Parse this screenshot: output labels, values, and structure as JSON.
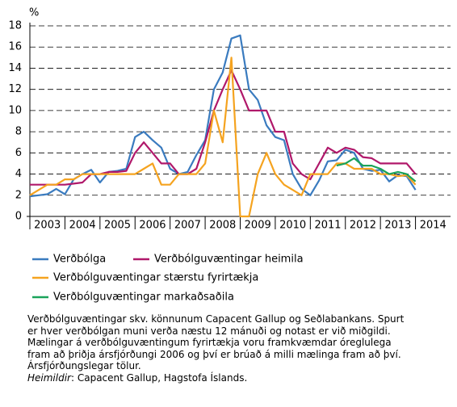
{
  "chart_data": {
    "type": "line",
    "y_label": "%",
    "x": [
      2003,
      2003.25,
      2003.5,
      2003.75,
      2004,
      2004.25,
      2004.5,
      2004.75,
      2005,
      2005.25,
      2005.5,
      2005.75,
      2006,
      2006.25,
      2006.5,
      2006.75,
      2007,
      2007.25,
      2007.5,
      2007.75,
      2008,
      2008.25,
      2008.5,
      2008.75,
      2009,
      2009.25,
      2009.5,
      2009.75,
      2010,
      2010.25,
      2010.5,
      2010.75,
      2011,
      2011.25,
      2011.5,
      2011.75,
      2012,
      2012.25,
      2012.5,
      2012.75,
      2013,
      2013.25,
      2013.5,
      2013.75,
      2014
    ],
    "xlim": [
      2003,
      2015
    ],
    "xticks": [
      2003,
      2004,
      2005,
      2006,
      2007,
      2008,
      2009,
      2010,
      2011,
      2012,
      2013,
      2014
    ],
    "ylim": [
      0,
      18
    ],
    "yticks": [
      0,
      2,
      4,
      6,
      8,
      10,
      12,
      14,
      16,
      18
    ],
    "grid": true,
    "series": [
      {
        "name": "Verðbólga",
        "color": "#3a7bbf",
        "values": [
          1.9,
          2.0,
          2.1,
          2.6,
          2.1,
          3.5,
          4.0,
          4.4,
          3.2,
          4.2,
          4.3,
          4.5,
          7.5,
          8.0,
          7.2,
          6.5,
          4.5,
          4.0,
          4.2,
          5.8,
          7.2,
          12.0,
          13.6,
          16.8,
          17.1,
          12.0,
          11.0,
          8.6,
          7.5,
          7.2,
          4.0,
          2.6,
          2.0,
          3.4,
          5.2,
          5.3,
          6.3,
          6.0,
          4.5,
          4.3,
          4.4,
          3.3,
          3.9,
          3.8,
          2.5
        ]
      },
      {
        "name": "Verðbólguvæntingar heimila",
        "color": "#b0186a",
        "values": [
          3,
          3,
          3,
          3,
          3,
          3.1,
          3.2,
          4,
          4,
          4.2,
          4.2,
          4.3,
          6,
          7,
          6,
          5,
          5,
          4,
          4,
          4.5,
          7,
          10,
          12,
          13.8,
          12,
          10,
          10,
          10,
          8,
          8,
          5,
          4,
          3.5,
          5,
          6.5,
          6,
          6.5,
          6.3,
          5.6,
          5.5,
          5,
          5,
          5,
          5,
          4
        ]
      },
      {
        "name": "Verðbólguvæntingar stærstu fyrirtækja",
        "color": "#f5a31f",
        "values": [
          2,
          2.5,
          3,
          3,
          3.5,
          3.5,
          4,
          4,
          4,
          4,
          4,
          4,
          4,
          4.5,
          5,
          3,
          3,
          4,
          4,
          4,
          5,
          10,
          7,
          15,
          0,
          0,
          4,
          6,
          4,
          3,
          2.5,
          2,
          4,
          4,
          4,
          5,
          5,
          4.5,
          4.5,
          4.5,
          4,
          4,
          3.8,
          3.9,
          3
        ]
      },
      {
        "name": "Verðbólguvæntingar markaðsaðila",
        "color": "#1aa35a",
        "values": [
          null,
          null,
          null,
          null,
          null,
          null,
          null,
          null,
          null,
          null,
          null,
          null,
          null,
          null,
          null,
          null,
          null,
          null,
          null,
          null,
          null,
          null,
          null,
          null,
          null,
          null,
          null,
          null,
          null,
          null,
          null,
          null,
          null,
          null,
          null,
          4.8,
          5.0,
          5.5,
          4.8,
          4.8,
          4.5,
          4.0,
          4.2,
          4.0,
          3.3
        ]
      }
    ]
  },
  "note": [
    "Verðbólguvæntingar skv. könnunum Capacent Gallup og Seðlabankans. Spurt",
    "er hver verðbólgan muni verða næstu 12 mánuði og notast er við miðgildi.",
    "Mælingar á verðbólguvæntingum fyrirtækja voru framkvæmdar óreglulega",
    "fram að þriðja ársfjórðungi 2006 og því er brúað á milli mælinga fram að því.",
    "Ársfjórðungslegar tölur."
  ],
  "source_label": "Heimildir",
  "source": ": Capacent Gallup, Hagstofa Íslands."
}
